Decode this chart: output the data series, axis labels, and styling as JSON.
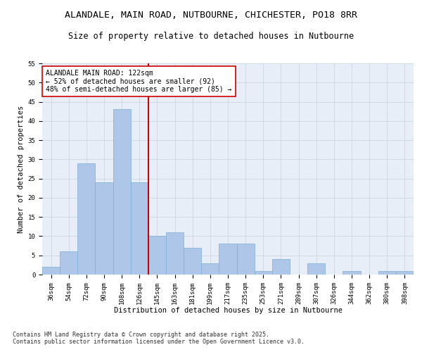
{
  "title_line1": "ALANDALE, MAIN ROAD, NUTBOURNE, CHICHESTER, PO18 8RR",
  "title_line2": "Size of property relative to detached houses in Nutbourne",
  "xlabel": "Distribution of detached houses by size in Nutbourne",
  "ylabel": "Number of detached properties",
  "categories": [
    "36sqm",
    "54sqm",
    "72sqm",
    "90sqm",
    "108sqm",
    "126sqm",
    "145sqm",
    "163sqm",
    "181sqm",
    "199sqm",
    "217sqm",
    "235sqm",
    "253sqm",
    "271sqm",
    "289sqm",
    "307sqm",
    "326sqm",
    "344sqm",
    "362sqm",
    "380sqm",
    "398sqm"
  ],
  "values": [
    2,
    6,
    29,
    24,
    43,
    24,
    10,
    11,
    7,
    3,
    8,
    8,
    1,
    4,
    0,
    3,
    0,
    1,
    0,
    1,
    1
  ],
  "bar_color": "#aec6e8",
  "bar_edge_color": "#7aafd4",
  "vline_x_idx": 5,
  "vline_color": "#cc0000",
  "annotation_text": "ALANDALE MAIN ROAD: 122sqm\n← 52% of detached houses are smaller (92)\n48% of semi-detached houses are larger (85) →",
  "annotation_box_edgecolor": "#cc0000",
  "ylim": [
    0,
    55
  ],
  "yticks": [
    0,
    5,
    10,
    15,
    20,
    25,
    30,
    35,
    40,
    45,
    50,
    55
  ],
  "bg_color": "#e8eef8",
  "footer": "Contains HM Land Registry data © Crown copyright and database right 2025.\nContains public sector information licensed under the Open Government Licence v3.0.",
  "title_fontsize": 9.5,
  "subtitle_fontsize": 8.5,
  "label_fontsize": 7.5,
  "tick_fontsize": 6.5,
  "annotation_fontsize": 7
}
